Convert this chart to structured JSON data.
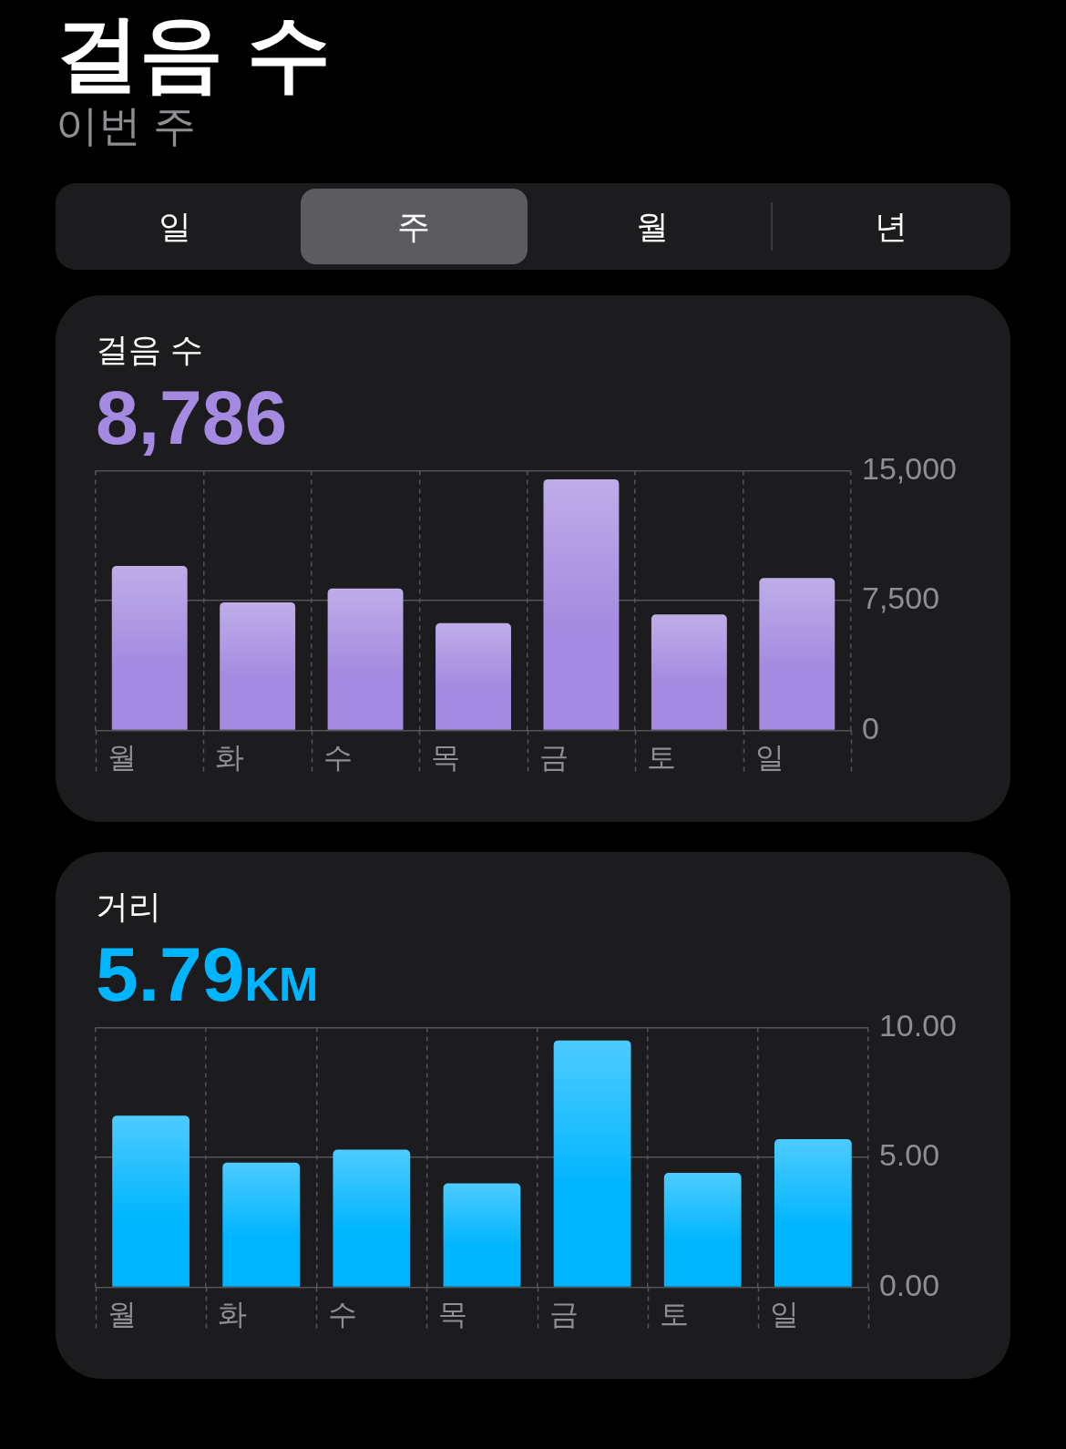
{
  "chart_data": [
    {
      "type": "other",
      "title": "걸음 수",
      "subtitle": "이번 주",
      "annotations": [
        "일",
        "주",
        "월",
        "년"
      ]
    },
    {
      "type": "bar",
      "title": "걸음 수",
      "subtitle": "8,786",
      "categories": [
        "월",
        "화",
        "수",
        "목",
        "금",
        "토",
        "일"
      ],
      "values": [
        9500,
        7400,
        8200,
        6200,
        14500,
        6700,
        8800
      ],
      "color": "#a48ae0",
      "ylim": [
        0,
        15000
      ],
      "yticks": [
        0,
        {
          "value": 7500,
          "label": "7,500"
        },
        {
          "value": 15000,
          "label": "15,000"
        }
      ],
      "grid": true
    },
    {
      "type": "bar",
      "title": "거리",
      "subtitle": "5.79KM",
      "categories": [
        "월",
        "화",
        "수",
        "목",
        "금",
        "토",
        "일"
      ],
      "values": [
        6.6,
        4.8,
        5.3,
        4.0,
        9.5,
        4.4,
        5.7
      ],
      "color": "#00b5ff",
      "ylim": [
        0,
        10
      ],
      "yticks": [
        {
          "value": 0,
          "label": "0.00"
        },
        {
          "value": 5,
          "label": "5.00"
        },
        {
          "value": 10,
          "label": "10.00"
        }
      ],
      "grid": true
    }
  ]
}
